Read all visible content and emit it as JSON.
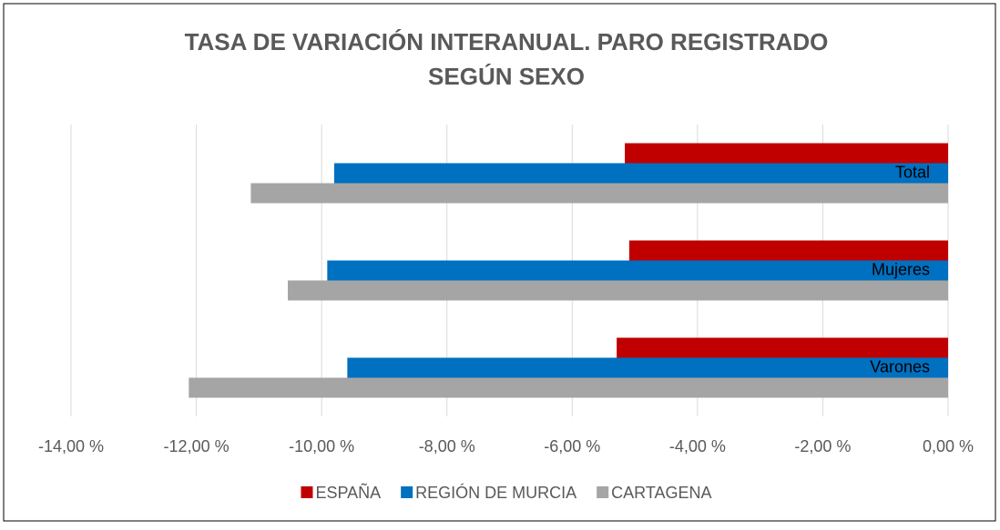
{
  "chart_data": {
    "type": "hbar",
    "title": [
      "TASA DE VARIACIÓN INTERANUAL. PARO REGISTRADO",
      "SEGÚN SEXO"
    ],
    "categories": [
      "Total",
      "Mujeres",
      "Varones"
    ],
    "series": [
      {
        "name": "ESPAÑA",
        "color": "#c00000",
        "values": [
          -5.16,
          -5.09,
          -5.29
        ]
      },
      {
        "name": "REGIÓN DE MURCIA",
        "color": "#0070c0",
        "values": [
          -9.8,
          -9.91,
          -9.59
        ]
      },
      {
        "name": "CARTAGENA",
        "color": "#a5a5a5",
        "values": [
          -11.13,
          -10.54,
          -12.12
        ]
      }
    ],
    "xlim": [
      -14,
      0
    ],
    "xticks": [
      {
        "value": -14,
        "label": "-14,00 %"
      },
      {
        "value": -12,
        "label": "-12,00 %"
      },
      {
        "value": -10,
        "label": "-10,00 %"
      },
      {
        "value": -8,
        "label": "-8,00 %"
      },
      {
        "value": -6,
        "label": "-6,00 %"
      },
      {
        "value": -4,
        "label": "-4,00 %"
      },
      {
        "value": -2,
        "label": "-2,00 %"
      },
      {
        "value": 0,
        "label": "0,00 %"
      }
    ],
    "grid": true,
    "legend": "bottom"
  }
}
